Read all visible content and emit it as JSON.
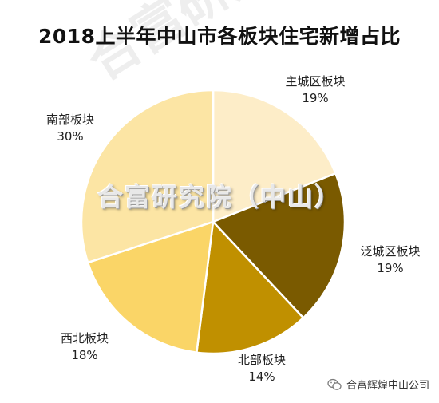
{
  "watermarks": {
    "diagonal": "合富研究院",
    "center": "合富研究院（中山）"
  },
  "footer": {
    "account_name": "合富辉煌中山公司",
    "icon": "wechat-icon"
  },
  "chart_data": {
    "type": "pie",
    "title": "2018上半年中山市各板块住宅新增占比",
    "start_angle_deg": 0,
    "direction": "clockwise",
    "slices": [
      {
        "name": "主城区板块",
        "value": 19,
        "label": "19%",
        "color": "#fdedc8"
      },
      {
        "name": "泛城区板块",
        "value": 19,
        "label": "19%",
        "color": "#7a5a00"
      },
      {
        "name": "北部板块",
        "value": 14,
        "label": "14%",
        "color": "#c09000"
      },
      {
        "name": "西北板块",
        "value": 18,
        "label": "18%",
        "color": "#fad567"
      },
      {
        "name": "南部板块",
        "value": 30,
        "label": "30%",
        "color": "#fce5a4"
      }
    ]
  }
}
